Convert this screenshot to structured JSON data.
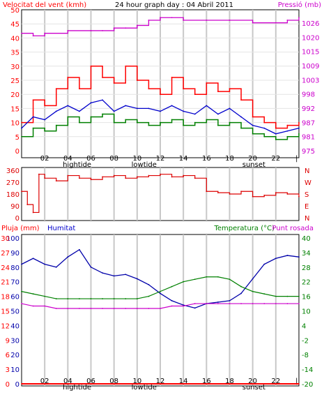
{
  "colors": {
    "wind": "#ff0000",
    "gust": "#ff0000",
    "wind_avg": "#0000cc",
    "wind_low": "#008000",
    "pressure": "#cc00cc",
    "direction": "#dd0000",
    "rain": "#ff0000",
    "humidity": "#0000aa",
    "temperature": "#008000",
    "dewpoint": "#cc00cc",
    "grid": "#c8c8c8",
    "frame": "#000000"
  },
  "chart_data": [
    {
      "type": "line",
      "panel": "wind",
      "title": "24 hour graph day : 04 Abril 2011",
      "ylabel_left": "Velocitat del vent (kmh)",
      "ylabel_right": "Pressió (mb)",
      "y_left_ticks": [
        "50",
        "45",
        "40",
        "35",
        "30",
        "25",
        "20",
        "15",
        "10",
        "5",
        "0"
      ],
      "y_right_ticks": [
        "1026",
        "1020",
        "1015",
        "1009",
        "1003",
        "998",
        "992",
        "987",
        "981",
        "975"
      ],
      "ylim_left": [
        0,
        50
      ],
      "ylim_right": [
        975,
        1029
      ],
      "x_ticks": [
        "02",
        "04",
        "06",
        "08",
        "10",
        "12",
        "14",
        "16",
        "18",
        "20",
        "22"
      ],
      "x_annotations": [
        "hightide",
        "lowtide",
        "sunset"
      ],
      "x_range_hours": [
        0,
        24
      ],
      "grid": true,
      "series": [
        {
          "key": "gust",
          "style": "step",
          "x": [
            0,
            1,
            2,
            3,
            4,
            5,
            6,
            7,
            8,
            9,
            10,
            11,
            12,
            13,
            14,
            15,
            16,
            17,
            18,
            19,
            20,
            21,
            22,
            23,
            24
          ],
          "values": [
            10,
            18,
            16,
            22,
            26,
            22,
            30,
            26,
            24,
            30,
            25,
            22,
            20,
            26,
            22,
            20,
            24,
            21,
            22,
            18,
            12,
            10,
            8,
            9,
            10
          ]
        },
        {
          "key": "wind_avg",
          "style": "line",
          "x": [
            0,
            1,
            2,
            3,
            4,
            5,
            6,
            7,
            8,
            9,
            10,
            11,
            12,
            13,
            14,
            15,
            16,
            17,
            18,
            19,
            20,
            21,
            22,
            23,
            24
          ],
          "values": [
            8,
            12,
            11,
            14,
            16,
            14,
            17,
            18,
            14,
            16,
            15,
            15,
            14,
            16,
            14,
            13,
            16,
            13,
            15,
            12,
            9,
            8,
            6,
            7,
            8
          ]
        },
        {
          "key": "wind_low",
          "style": "step",
          "x": [
            0,
            1,
            2,
            3,
            4,
            5,
            6,
            7,
            8,
            9,
            10,
            11,
            12,
            13,
            14,
            15,
            16,
            17,
            18,
            19,
            20,
            21,
            22,
            23,
            24
          ],
          "values": [
            5,
            8,
            7,
            9,
            12,
            10,
            12,
            13,
            10,
            11,
            10,
            9,
            10,
            11,
            9,
            10,
            11,
            9,
            10,
            8,
            6,
            5,
            4,
            5,
            6
          ]
        },
        {
          "key": "pressure",
          "style": "step",
          "axis": "right",
          "x": [
            0,
            1,
            2,
            4,
            6,
            7,
            8,
            9,
            10,
            11,
            12,
            13,
            14,
            16,
            18,
            20,
            22,
            23,
            24
          ],
          "values": [
            1020,
            1019,
            1020,
            1021,
            1021,
            1021,
            1022,
            1022,
            1023,
            1025,
            1026,
            1026,
            1025,
            1025,
            1025,
            1024,
            1024,
            1025,
            1026
          ]
        }
      ]
    },
    {
      "type": "line",
      "panel": "direction",
      "y_left_ticks": [
        "360",
        "270",
        "180",
        "90",
        "0"
      ],
      "y_right_labels": [
        "N",
        "W",
        "S",
        "E",
        "N"
      ],
      "ylim": [
        0,
        360
      ],
      "series": [
        {
          "key": "direction",
          "x": [
            0,
            0.5,
            1,
            1.5,
            2,
            3,
            4,
            5,
            6,
            7,
            8,
            9,
            10,
            11,
            12,
            13,
            14,
            15,
            16,
            17,
            18,
            19,
            20,
            21,
            22,
            23,
            24
          ],
          "values": [
            200,
            100,
            40,
            330,
            300,
            280,
            320,
            300,
            290,
            310,
            320,
            300,
            310,
            320,
            330,
            310,
            320,
            300,
            200,
            190,
            180,
            200,
            160,
            170,
            190,
            180,
            160
          ]
        }
      ]
    },
    {
      "type": "line",
      "panel": "climate",
      "ylabel_left": "Pluja (mm)",
      "ylabel_left2": "Humitat",
      "ylabel_right": "Temperatura (°C)",
      "ylabel_right2": "Punt rosada",
      "y_left_ticks": [
        "100",
        "90",
        "80",
        "70",
        "60",
        "50",
        "40",
        "30",
        "20",
        "10",
        "0"
      ],
      "y_left_ticks2": [
        "30",
        "27",
        "24",
        "21",
        "18",
        "15",
        "12",
        "9",
        "6",
        "3",
        "0"
      ],
      "y_right_ticks": [
        "40",
        "34",
        "28",
        "22",
        "16",
        "10",
        "4",
        "-2",
        "-8",
        "-14",
        "-20"
      ],
      "ylim_left": [
        0,
        100
      ],
      "ylim_right": [
        -20,
        40
      ],
      "x_ticks": [
        "02",
        "04",
        "06",
        "08",
        "10",
        "12",
        "14",
        "16",
        "18",
        "20",
        "22"
      ],
      "x_annotations": [
        "hightide",
        "lowtide",
        "sunset"
      ],
      "series": [
        {
          "key": "humidity",
          "axis": "left",
          "x": [
            0,
            1,
            2,
            3,
            4,
            5,
            6,
            7,
            8,
            9,
            10,
            11,
            12,
            13,
            14,
            15,
            16,
            17,
            18,
            19,
            20,
            21,
            22,
            23,
            24
          ],
          "values": [
            82,
            86,
            82,
            80,
            87,
            92,
            80,
            76,
            74,
            75,
            72,
            68,
            62,
            57,
            54,
            52,
            55,
            56,
            57,
            62,
            72,
            82,
            86,
            88,
            87
          ]
        },
        {
          "key": "temperature",
          "axis": "right",
          "x": [
            0,
            1,
            2,
            3,
            4,
            5,
            6,
            7,
            8,
            9,
            10,
            11,
            12,
            13,
            14,
            15,
            16,
            17,
            18,
            19,
            20,
            21,
            22,
            23,
            24
          ],
          "values": [
            18,
            17,
            16,
            15,
            15,
            15,
            15,
            15,
            15,
            15,
            15,
            16,
            18,
            20,
            22,
            23,
            24,
            24,
            23,
            20,
            18,
            17,
            16,
            16,
            16
          ]
        },
        {
          "key": "dewpoint",
          "axis": "right",
          "x": [
            0,
            1,
            2,
            3,
            4,
            5,
            6,
            7,
            8,
            9,
            10,
            11,
            12,
            13,
            14,
            15,
            16,
            17,
            18,
            19,
            20,
            21,
            22,
            23,
            24
          ],
          "values": [
            13,
            12,
            12,
            11,
            11,
            11,
            11,
            11,
            11,
            11,
            11,
            11,
            11,
            12,
            12,
            13,
            13,
            13,
            13,
            13,
            13,
            13,
            13,
            13,
            13
          ]
        },
        {
          "key": "rain",
          "axis": "left",
          "x": [
            0,
            24
          ],
          "values": [
            0,
            0
          ]
        }
      ]
    }
  ]
}
